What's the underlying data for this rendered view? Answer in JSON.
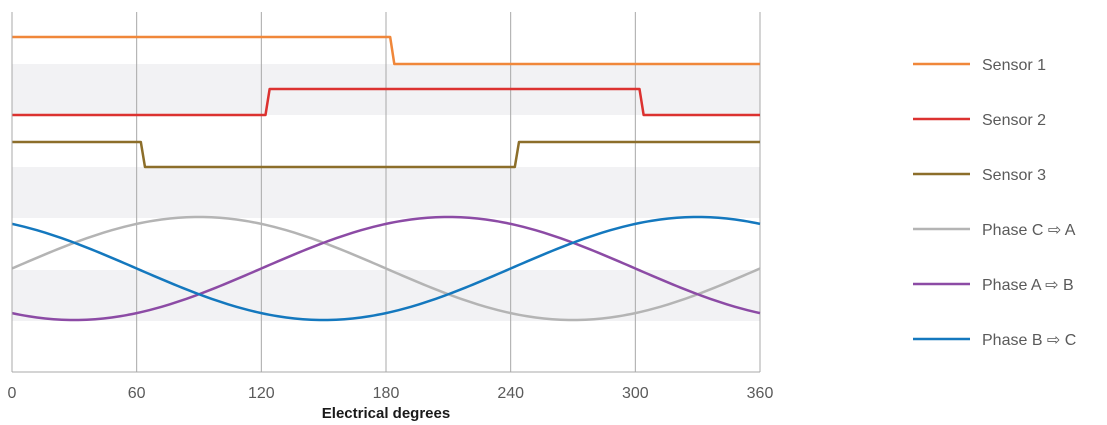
{
  "chart_data": {
    "type": "line",
    "xlabel": "Electrical degrees",
    "ylabel": "",
    "xlim": [
      0,
      360
    ],
    "x_ticks": [
      "0",
      "60",
      "120",
      "180",
      "240",
      "300",
      "360"
    ],
    "grid": "vertical lines at each tick, alternating horizontal gray bands",
    "legend_position": "right",
    "series": [
      {
        "name": "Sensor 1",
        "color": "#F0873A",
        "kind": "step",
        "points": [
          [
            0,
            1
          ],
          [
            182,
            1
          ],
          [
            184,
            0
          ],
          [
            360,
            0
          ]
        ]
      },
      {
        "name": "Sensor 2",
        "color": "#DC3230",
        "kind": "step",
        "points": [
          [
            0,
            0
          ],
          [
            122,
            0
          ],
          [
            124,
            1
          ],
          [
            302,
            1
          ],
          [
            304,
            0
          ],
          [
            360,
            0
          ]
        ]
      },
      {
        "name": "Sensor 3",
        "color": "#8C6E2A",
        "kind": "step",
        "points": [
          [
            0,
            1
          ],
          [
            62,
            1
          ],
          [
            64,
            0
          ],
          [
            242,
            0
          ],
          [
            244,
            1
          ],
          [
            360,
            1
          ]
        ]
      },
      {
        "name": "Phase C ⇨ A",
        "color": "#B4B4B4",
        "kind": "sine",
        "phase_deg": 0
      },
      {
        "name": "Phase A ⇨ B",
        "color": "#8C4BA5",
        "kind": "sine",
        "phase_deg": -120
      },
      {
        "name": "Phase B ⇨ C",
        "color": "#1478BE",
        "kind": "sine",
        "phase_deg": 120
      }
    ]
  }
}
